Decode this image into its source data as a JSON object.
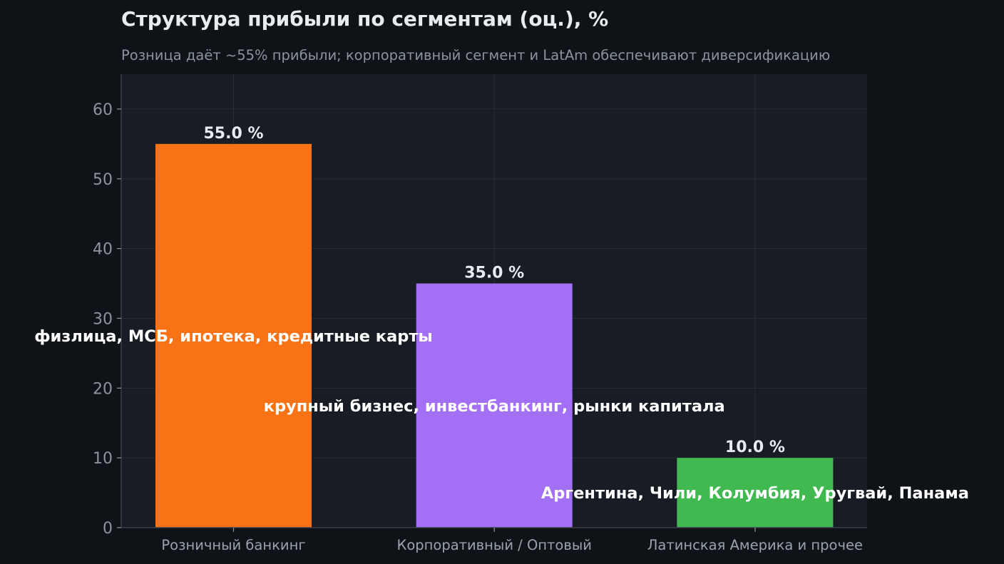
{
  "chart_data": {
    "type": "bar",
    "title": "Структура прибыли по сегментам (оц.), %",
    "subtitle": "Розница даёт ~55% прибыли; корпоративный сегмент и LatAm обеспечивают диверсификацию",
    "xlabel": "",
    "ylabel": "",
    "ylim": [
      0,
      65
    ],
    "yticks": [
      0,
      10,
      20,
      30,
      40,
      50,
      60
    ],
    "grid": true,
    "categories": [
      "Розничный банкинг",
      "Корпоративный / Оптовый",
      "Латинская Америка и прочее"
    ],
    "values": [
      55.0,
      35.0,
      10.0
    ],
    "value_labels": [
      "55.0 %",
      "35.0 %",
      "10.0 %"
    ],
    "annotations": [
      {
        "category": "Розничный банкинг",
        "text": "физлица, МСБ, ипотека, кредитные карты",
        "y": 27.5
      },
      {
        "category": "Корпоративный / Оптовый",
        "text": "крупный бизнес, инвестбанкинг, рынки капитала",
        "y": 17.5
      },
      {
        "category": "Латинская Америка и прочее",
        "text": "Аргентина, Чили, Колумбия, Уругвай, Панама",
        "y": 5.0
      }
    ],
    "colors": [
      "#f97316",
      "#a370f5",
      "#3fb950"
    ],
    "background": "#0f1317",
    "plot_background": "#181c24",
    "grid_color": "#262c36",
    "axis_color": "#3a404a"
  }
}
